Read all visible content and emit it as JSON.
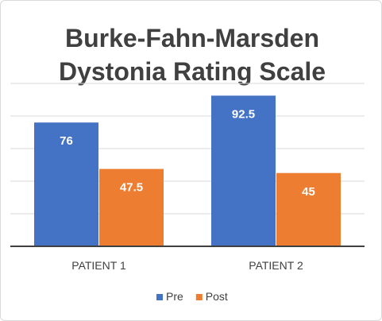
{
  "chart_data": {
    "type": "bar",
    "title_lines": [
      "Burke-Fahn-Marsden",
      "Dystonia Rating Scale"
    ],
    "categories": [
      "PATIENT 1",
      "PATIENT 2"
    ],
    "series": [
      {
        "name": "Pre",
        "values": [
          76,
          92.5
        ],
        "labels": [
          "76",
          "92.5"
        ],
        "color": "#4472C4"
      },
      {
        "name": "Post",
        "values": [
          47.5,
          45
        ],
        "labels": [
          "47.5",
          "45"
        ],
        "color": "#ED7D31"
      }
    ],
    "ylim": [
      0,
      100
    ],
    "grid": true,
    "legend_position": "bottom"
  }
}
